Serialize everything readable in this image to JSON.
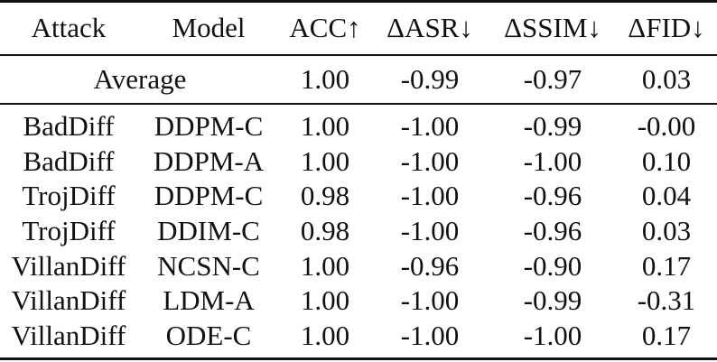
{
  "table": {
    "headers": {
      "attack": "Attack",
      "model": "Model",
      "acc": "ACC↑",
      "asr": "ΔASR↓",
      "ssim": "ΔSSIM↓",
      "fid": "ΔFID↓"
    },
    "average": {
      "label": "Average",
      "acc": "1.00",
      "asr": "-0.99",
      "ssim": "-0.97",
      "fid": "0.03"
    },
    "rows": [
      {
        "attack": "BadDiff",
        "model": "DDPM-C",
        "acc": "1.00",
        "asr": "-1.00",
        "ssim": "-0.99",
        "fid": "-0.00"
      },
      {
        "attack": "BadDiff",
        "model": "DDPM-A",
        "acc": "1.00",
        "asr": "-1.00",
        "ssim": "-1.00",
        "fid": "0.10"
      },
      {
        "attack": "TrojDiff",
        "model": "DDPM-C",
        "acc": "0.98",
        "asr": "-1.00",
        "ssim": "-0.96",
        "fid": "0.04"
      },
      {
        "attack": "TrojDiff",
        "model": "DDIM-C",
        "acc": "0.98",
        "asr": "-1.00",
        "ssim": "-0.96",
        "fid": "0.03"
      },
      {
        "attack": "VillanDiff",
        "model": "NCSN-C",
        "acc": "1.00",
        "asr": "-0.96",
        "ssim": "-0.90",
        "fid": "0.17"
      },
      {
        "attack": "VillanDiff",
        "model": "LDM-A",
        "acc": "1.00",
        "asr": "-1.00",
        "ssim": "-0.99",
        "fid": "-0.31"
      },
      {
        "attack": "VillanDiff",
        "model": "ODE-C",
        "acc": "1.00",
        "asr": "-1.00",
        "ssim": "-1.00",
        "fid": "0.17"
      }
    ]
  }
}
